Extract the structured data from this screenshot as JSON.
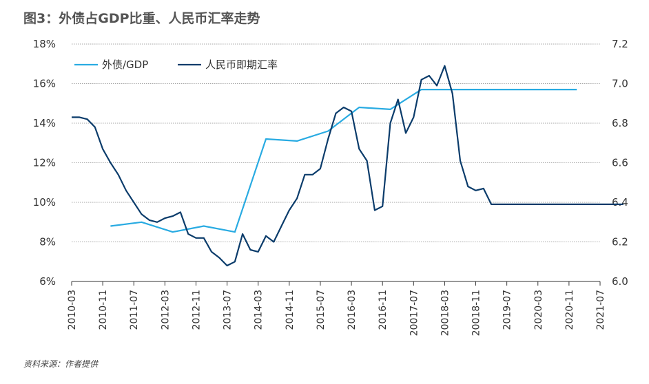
{
  "title": "图3：外债占GDP比重、人民币汇率走势",
  "source": "资料来源：作者提供",
  "colors": {
    "series1": "#29ABE2",
    "series2": "#0B3C6B",
    "grid": "#888888",
    "axis": "#333333"
  },
  "chart_data": {
    "type": "line",
    "title": "图3：外债占GDP比重、人民币汇率走势",
    "legend_position": "top-left",
    "grid": true,
    "categories": [
      "2010-03",
      "2010-11",
      "2011-07",
      "2012-03",
      "2012-11",
      "2013-07",
      "2014-03",
      "2014-11",
      "2015-07",
      "2016-03",
      "2016-11",
      "20017-07",
      "20018-03",
      "20018-11",
      "2019-07",
      "2020-03",
      "2020-11",
      "2021-07"
    ],
    "left_axis": {
      "ylim": [
        6,
        18
      ],
      "ticks": [
        "6%",
        "8%",
        "10%",
        "12%",
        "14%",
        "16%",
        "18%"
      ]
    },
    "right_axis": {
      "ylim": [
        6.0,
        7.2
      ],
      "ticks": [
        "6.0",
        "6.2",
        "6.4",
        "6.6",
        "6.8",
        "7.0",
        "7.2"
      ]
    },
    "series": [
      {
        "name": "外债/GDP",
        "axis": "left",
        "x": [
          1.25,
          2.25,
          3.25,
          4.25,
          5.25,
          6.25,
          7.25,
          8.25,
          9.25,
          10.25,
          11.25,
          12.25,
          13.25,
          14.25,
          15.25,
          16.25
        ],
        "values": [
          8.8,
          9.0,
          8.5,
          8.8,
          8.5,
          13.2,
          13.1,
          13.6,
          14.8,
          14.7,
          15.7,
          15.7,
          15.7,
          15.7,
          15.7,
          15.7
        ]
      },
      {
        "name": "人民币即期汇率",
        "axis": "right",
        "x": [
          0,
          0.25,
          0.5,
          0.75,
          1.0,
          1.25,
          1.5,
          1.75,
          2.0,
          2.25,
          2.5,
          2.75,
          3.0,
          3.25,
          3.5,
          3.75,
          4.0,
          4.25,
          4.5,
          4.75,
          5.0,
          5.25,
          5.5,
          5.75,
          6.0,
          6.25,
          6.5,
          6.75,
          7.0,
          7.25,
          7.5,
          7.75,
          8.0,
          8.25,
          8.5,
          8.75,
          9.0,
          9.25,
          9.5,
          9.75,
          10.0,
          10.25,
          10.5,
          10.75,
          11.0,
          11.25,
          11.5,
          11.75,
          12.0,
          12.25,
          12.5,
          12.75,
          13.0,
          13.25,
          13.5,
          13.75,
          14.0,
          14.25,
          14.5,
          14.75,
          15.0,
          15.25,
          15.5,
          15.75,
          16.0,
          16.25,
          16.5,
          16.75,
          17.0,
          17.25,
          17.5,
          17.75
        ],
        "values": [
          6.83,
          6.83,
          6.82,
          6.78,
          6.67,
          6.6,
          6.54,
          6.46,
          6.4,
          6.34,
          6.31,
          6.3,
          6.32,
          6.33,
          6.35,
          6.24,
          6.22,
          6.22,
          6.15,
          6.12,
          6.08,
          6.1,
          6.24,
          6.16,
          6.15,
          6.23,
          6.2,
          6.28,
          6.36,
          6.42,
          6.54,
          6.54,
          6.57,
          6.72,
          6.85,
          6.88,
          6.86,
          6.67,
          6.61,
          6.36,
          6.38,
          6.8,
          6.92,
          6.75,
          6.83,
          7.02,
          7.04,
          6.99,
          7.09,
          6.95,
          6.61,
          6.48,
          6.46,
          6.47,
          6.39,
          6.39,
          6.39,
          6.39,
          6.39,
          6.39,
          6.39,
          6.39,
          6.39,
          6.39,
          6.39,
          6.39,
          6.39,
          6.39,
          6.39,
          6.39,
          6.39,
          6.39
        ]
      }
    ]
  }
}
